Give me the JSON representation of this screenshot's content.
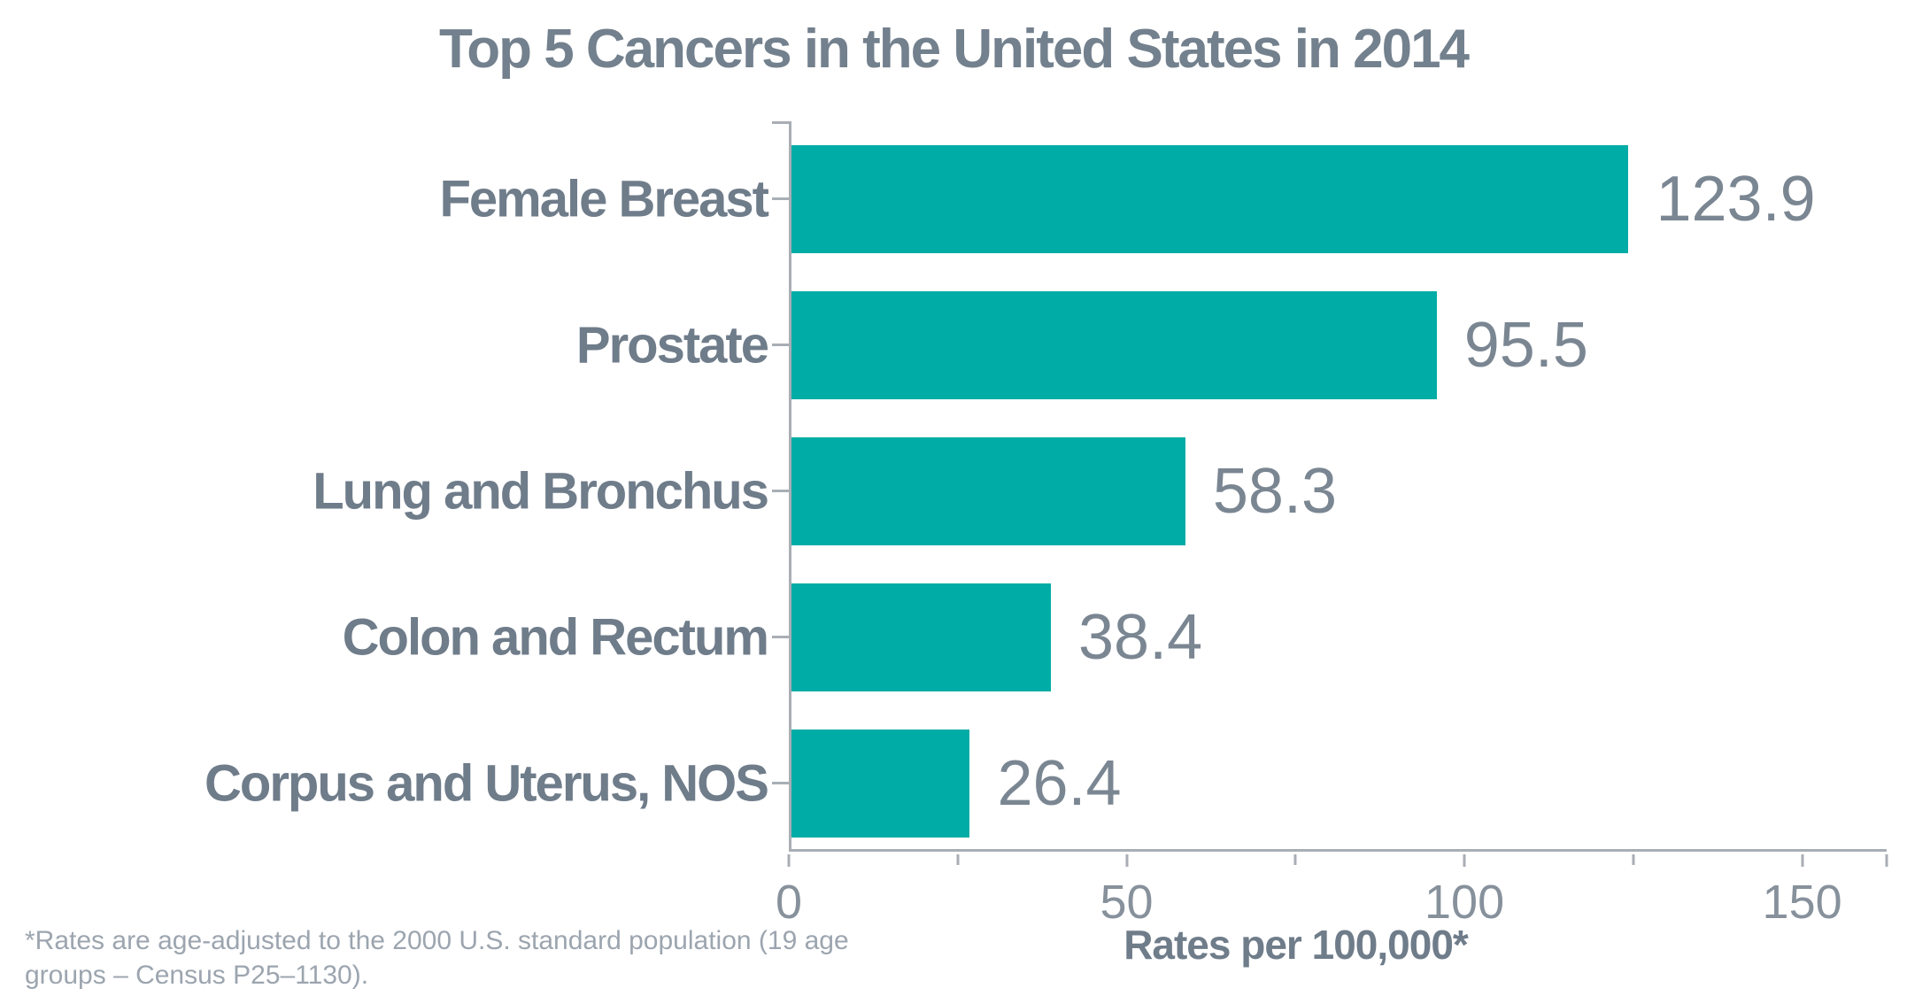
{
  "title": "Top 5 Cancers in the United States in 2014",
  "footnote": {
    "line1": "*Rates are age-adjusted to the 2000 U.S. standard population (19 age",
    "line2": "groups – Census P25–1130)."
  },
  "colors": {
    "bar": "#00ACA6",
    "category_label": "#6F7C8A",
    "value_label": "#7A8692",
    "axis": "#A9AEB5",
    "tick_label": "#86919C",
    "title": "#73808D",
    "footnote": "#9CA5AF"
  },
  "chart_data": {
    "type": "bar",
    "orientation": "horizontal",
    "title": "Top 5 Cancers in the United States in 2014",
    "categories": [
      "Female Breast",
      "Prostate",
      "Lung and Bronchus",
      "Colon and Rectum",
      "Corpus and Uterus, NOS"
    ],
    "values": [
      123.9,
      95.5,
      58.3,
      38.4,
      26.4
    ],
    "xlabel": "Rates per 100,000*",
    "x_ticks": [
      0,
      50,
      100,
      150
    ],
    "x_minor_ticks": [
      25,
      75,
      125
    ],
    "xlim": [
      0,
      162.5
    ],
    "grid": false,
    "legend": "none",
    "bar_color": "#00ACA6",
    "footnote": "*Rates are age-adjusted to the 2000 U.S. standard population (19 age groups – Census P25–1130)."
  }
}
